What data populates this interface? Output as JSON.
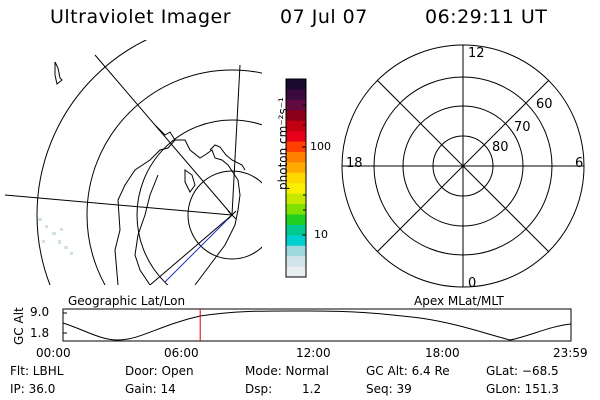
{
  "header": {
    "instrument": "Ultraviolet Imager",
    "date": "07 Jul 07",
    "time": "06:29:11 UT"
  },
  "colorbar": {
    "label": "photon cm⁻²s⁻¹",
    "tick_high": "100",
    "tick_low": "10",
    "colors_top_to_bottom": [
      "#1a0a2e",
      "#3a0a3e",
      "#600a40",
      "#8b0018",
      "#c00010",
      "#e8001a",
      "#ff4000",
      "#ff8000",
      "#ffaa00",
      "#ffd800",
      "#f8f000",
      "#c8e800",
      "#80e000",
      "#20d020",
      "#00c890",
      "#00d0d0",
      "#a0d8e0",
      "#d0e4ea",
      "#e8eef0"
    ]
  },
  "polar_plot": {
    "mlt_labels": [
      "12",
      "6",
      "0",
      "18"
    ],
    "lat_labels": [
      "60",
      "70",
      "80"
    ]
  },
  "timeline": {
    "axis_label": "GC Alt",
    "ymax": "9.0",
    "ymin": "1.8",
    "left_label": "Geographic Lat/Lon",
    "right_label": "Apex MLat/MLT",
    "times": [
      "00:00",
      "06:00",
      "12:00",
      "18:00",
      "23:59"
    ],
    "current_time_fraction": 0.27,
    "marker_color": "#e00000"
  },
  "info": {
    "flt": "Flt: LBHL",
    "ip": "IP: 36.0",
    "door": "Door: Open",
    "gain": "Gain: 14",
    "mode": "Mode: Normal",
    "dsp_label": "Dsp:",
    "dsp_value": "1.2",
    "gc_alt": "GC Alt: 6.4 Re",
    "seq": "Seq: 39",
    "glat": "GLat: −68.5",
    "glon": "GLon: 151.3"
  }
}
